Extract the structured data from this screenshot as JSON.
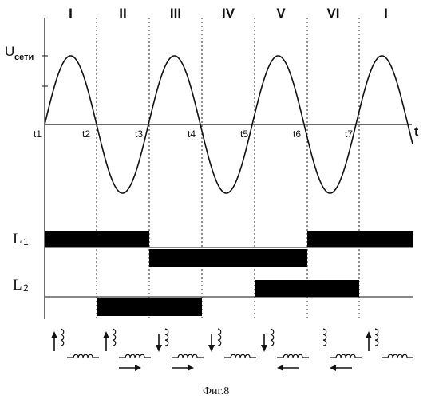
{
  "intervals": [
    "I",
    "II",
    "III",
    "IV",
    "V",
    "VI",
    "I"
  ],
  "voltage_label": {
    "main": "U",
    "sub": "сети"
  },
  "time_axis_label": "t",
  "time_marks": [
    "t1",
    "t2",
    "t3",
    "t4",
    "t5",
    "t6",
    "t7"
  ],
  "coil_labels": [
    {
      "main": "L",
      "sub": "1"
    },
    {
      "main": "L",
      "sub": "2"
    }
  ],
  "L1_states": [
    "up",
    "up",
    "down",
    "down",
    "down",
    "up",
    "up"
  ],
  "L2_states": [
    "off",
    "on_low",
    "on_low",
    "off",
    "on_high",
    "on_high",
    "off"
  ],
  "icon_groups": [
    {
      "arrow": "up",
      "bottom_arrow": "none"
    },
    {
      "arrow": "up",
      "bottom_arrow": "right"
    },
    {
      "arrow": "down",
      "bottom_arrow": "right"
    },
    {
      "arrow": "down",
      "bottom_arrow": "none"
    },
    {
      "arrow": "down",
      "bottom_arrow": "left"
    },
    {
      "arrow": "none",
      "bottom_arrow": "left"
    },
    {
      "arrow": "up",
      "bottom_arrow": "none"
    }
  ],
  "caption": "Фиг.8"
}
